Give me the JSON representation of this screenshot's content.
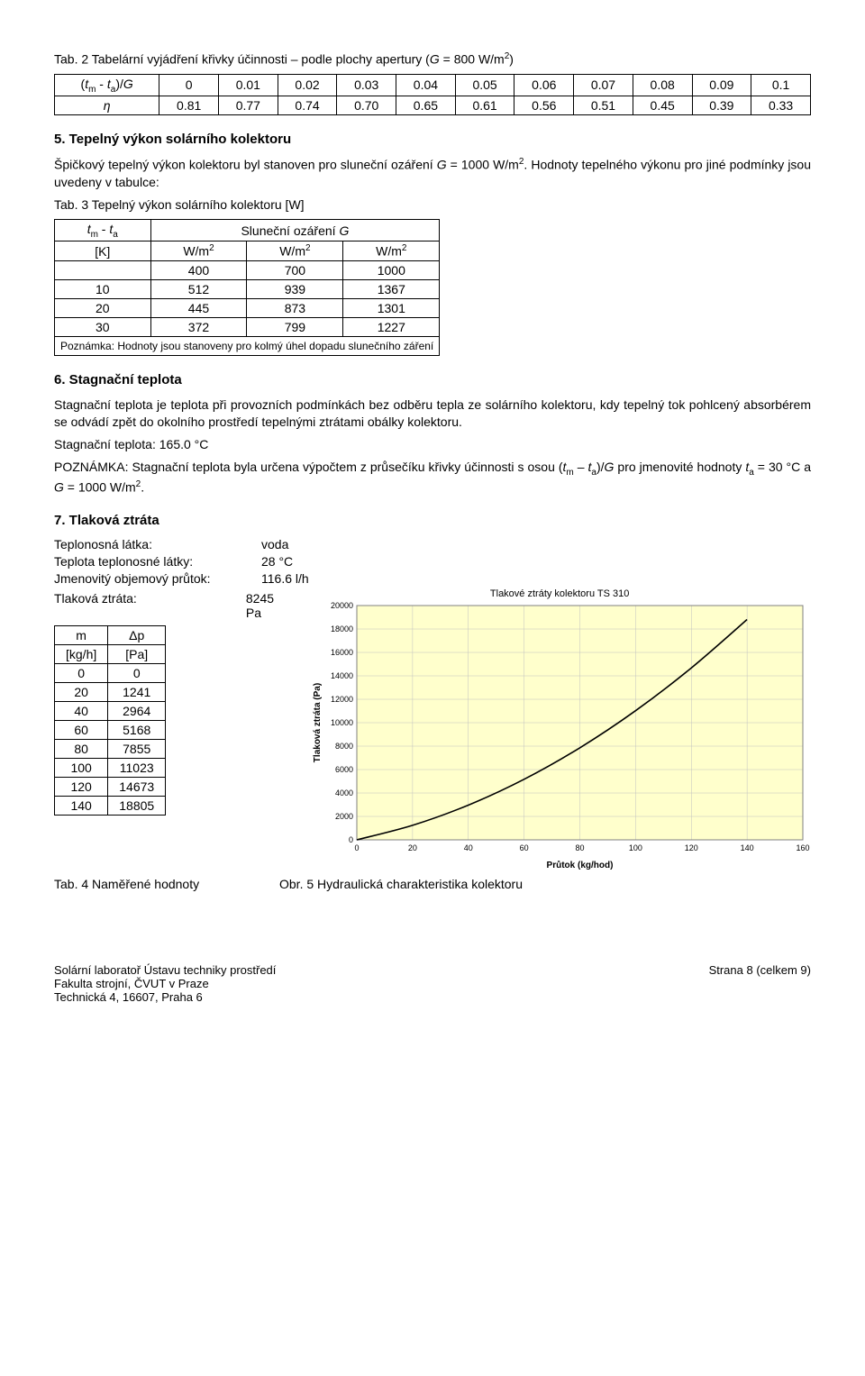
{
  "tab2": {
    "caption_prefix": "Tab. 2  Tabelární vyjádření křivky účinnosti – podle plochy apertury (",
    "caption_var": "G",
    "caption_suffix": " = 800 W/m",
    "caption_exp": "2",
    "caption_close": ")",
    "header_cell_html": "(<span class='ital'>t</span><sub>m</sub> - <span class='ital'>t</span><sub>a</sub>)/<span class='ital'>G</span>",
    "cols": [
      "0",
      "0.01",
      "0.02",
      "0.03",
      "0.04",
      "0.05",
      "0.06",
      "0.07",
      "0.08",
      "0.09",
      "0.1"
    ],
    "eta_sym": "η",
    "eta": [
      "0.81",
      "0.77",
      "0.74",
      "0.70",
      "0.65",
      "0.61",
      "0.56",
      "0.51",
      "0.45",
      "0.39",
      "0.33"
    ]
  },
  "s5": {
    "title": "5. Tepelný výkon solárního kolektoru",
    "p1_a": "Špičkový tepelný výkon kolektoru byl stanoven pro sluneční ozáření ",
    "p1_var": "G",
    "p1_b": " = 1000 W/m",
    "p1_exp": "2",
    "p1_c": ". Hodnoty tepelného výkonu pro jiné podmínky jsou uvedeny v tabulce:",
    "tab3_caption": "Tab. 3 Tepelný výkon solárního kolektoru [W]",
    "tab3_h1_html": "<span class='ital'>t</span><sub>m</sub> - <span class='ital'>t</span><sub>a</sub>",
    "tab3_h2_html": "Sluneční ozáření <span class='ital'>G</span>",
    "tab3_unitK": "[K]",
    "tab3_unitW": "W/m",
    "tab3_unit_exp": "2",
    "tab3_irr": [
      "400",
      "700",
      "1000"
    ],
    "tab3_rows": [
      [
        "10",
        "512",
        "939",
        "1367"
      ],
      [
        "20",
        "445",
        "873",
        "1301"
      ],
      [
        "30",
        "372",
        "799",
        "1227"
      ]
    ],
    "tab3_note": "Poznámka: Hodnoty jsou stanoveny pro kolmý úhel dopadu slunečního záření"
  },
  "s6": {
    "title": "6. Stagnační teplota",
    "p1": "Stagnační teplota je teplota při provozních podmínkách bez odběru tepla ze solárního kolektoru, kdy tepelný tok pohlcený absorbérem se odvádí zpět do okolního prostředí tepelnými ztrátami obálky kolektoru.",
    "p2": "Stagnační teplota: 165.0 °C",
    "p3_a": "POZNÁMKA: Stagnační teplota byla určena výpočtem z průsečíku křivky účinnosti s osou (",
    "p3_var1_html": "<span class='ital'>t</span><sub>m</sub> – <span class='ital'>t</span><sub>a</sub>)/<span class='ital'>G</span>",
    "p3_b": " pro jmenovité hodnoty ",
    "p3_var2_html": "<span class='ital'>t</span><sub>a</sub>",
    "p3_c": " = 30 °C a ",
    "p3_var3": "G",
    "p3_d": " = 1000 W/m",
    "p3_exp": "2",
    "p3_e": "."
  },
  "s7": {
    "title": "7. Tlaková ztráta",
    "rows": [
      [
        "Teplonosná látka:",
        "voda"
      ],
      [
        "Teplota teplonosné látky:",
        "28 °C"
      ],
      [
        "Jmenovitý objemový průtok:",
        "116.6 l/h"
      ],
      [
        "Tlaková ztráta:",
        "8245 Pa"
      ]
    ],
    "tab4": {
      "h1": "m",
      "h2": "Δp",
      "u1": "[kg/h]",
      "u2": "[Pa]",
      "rows": [
        [
          "0",
          "0"
        ],
        [
          "20",
          "1241"
        ],
        [
          "40",
          "2964"
        ],
        [
          "60",
          "5168"
        ],
        [
          "80",
          "7855"
        ],
        [
          "100",
          "11023"
        ],
        [
          "120",
          "14673"
        ],
        [
          "140",
          "18805"
        ]
      ]
    },
    "chart": {
      "title": "Tlakové ztráty kolektoru TS 310",
      "xlabel": "Průtok (kg/hod)",
      "ylabel": "Tlaková ztráta (Pa)",
      "xlim": [
        0,
        160
      ],
      "ylim": [
        0,
        20000
      ],
      "xticks": [
        0,
        20,
        40,
        60,
        80,
        100,
        120,
        140,
        160
      ],
      "yticks": [
        0,
        2000,
        4000,
        6000,
        8000,
        10000,
        12000,
        14000,
        16000,
        18000,
        20000
      ],
      "bg_color": "#ffffcc",
      "grid_color": "#c0c0c0",
      "line_color": "#000000",
      "tick_fontsize": 9,
      "label_fontsize": 10,
      "points_x": [
        0,
        20,
        40,
        60,
        80,
        100,
        120,
        140
      ],
      "points_y": [
        0,
        1241,
        2964,
        5168,
        7855,
        11023,
        14673,
        18805
      ]
    },
    "cap_left": "Tab. 4 Naměřené hodnoty",
    "cap_right": "Obr. 5 Hydraulická charakteristika kolektoru"
  },
  "footer": {
    "l1": "Solární laboratoř Ústavu techniky prostředí",
    "l2": "Fakulta strojní, ČVUT v Praze",
    "l3": "Technická 4, 16607, Praha 6",
    "r1": "Strana 8 (celkem 9)"
  }
}
